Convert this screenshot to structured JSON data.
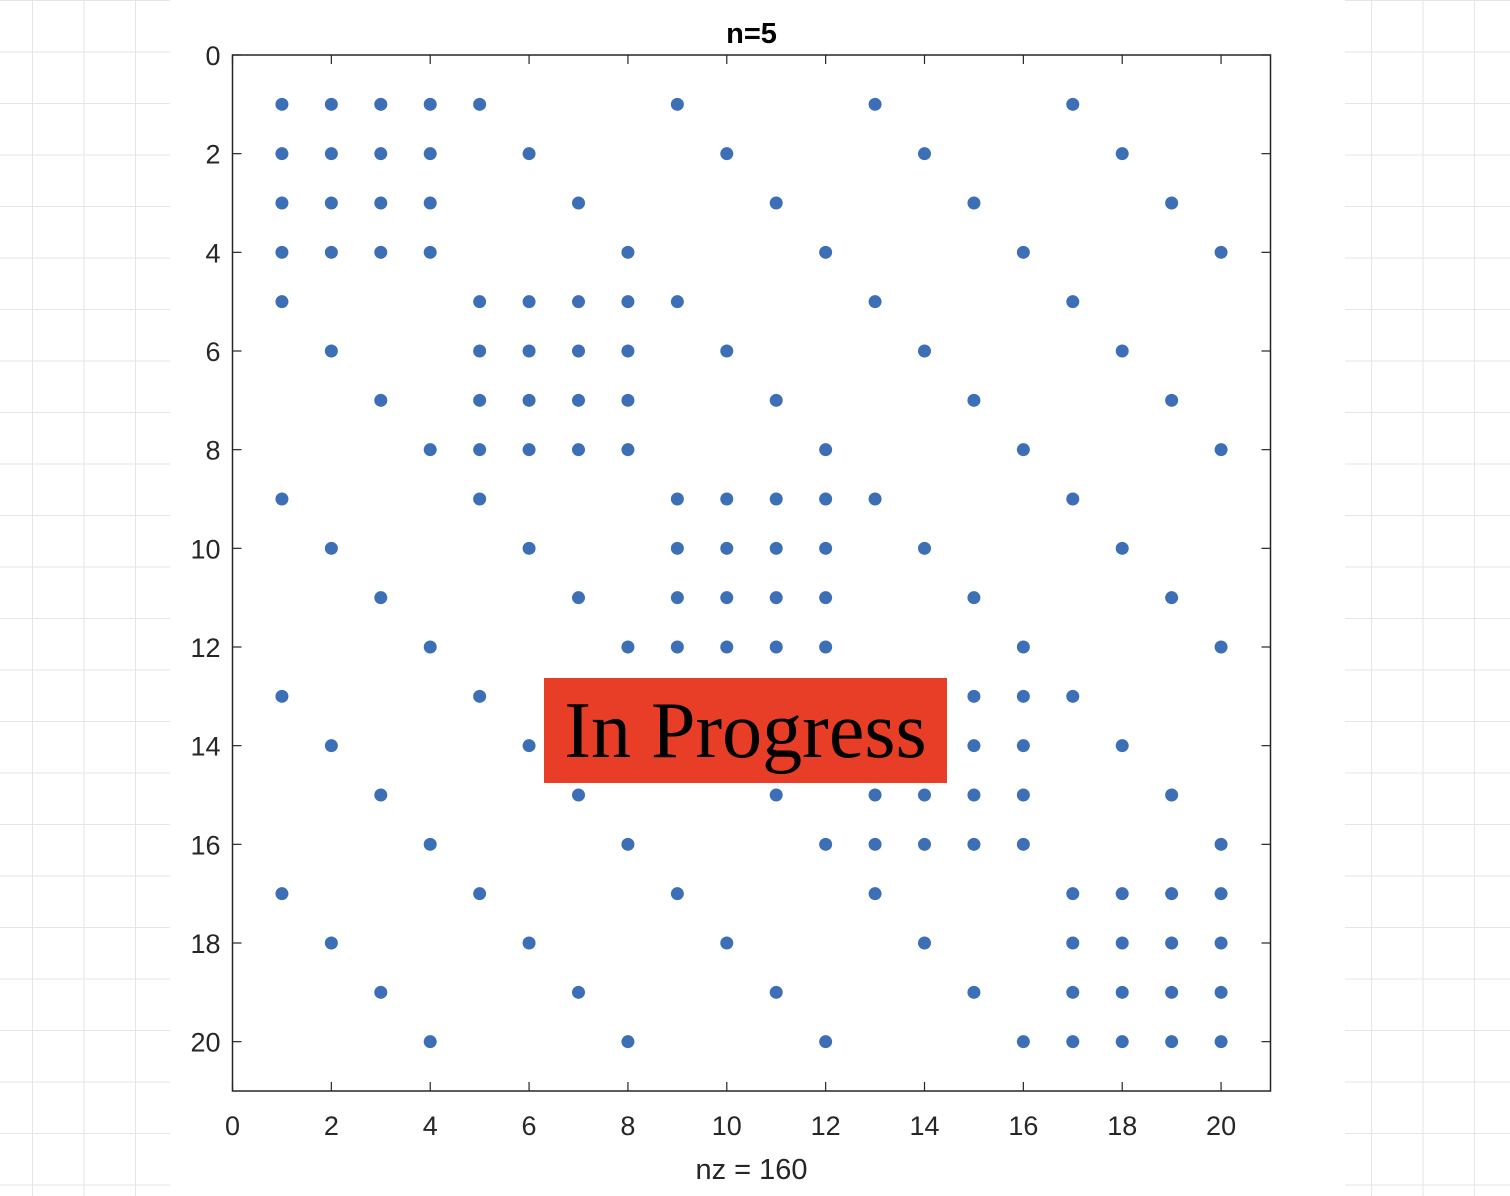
{
  "chart_data": {
    "type": "scatter",
    "title": "n=5",
    "xlabel": "nz = 160",
    "ylabel": "",
    "xlim": [
      0,
      21
    ],
    "ylim": [
      0,
      21
    ],
    "y_reversed": true,
    "xticks": [
      0,
      2,
      4,
      6,
      8,
      10,
      12,
      14,
      16,
      18,
      20
    ],
    "yticks": [
      0,
      2,
      4,
      6,
      8,
      10,
      12,
      14,
      16,
      18,
      20
    ],
    "grid": false,
    "marker_color": "#3d6fb6",
    "rows": [
      [
        1,
        [
          1,
          2,
          3,
          4,
          5,
          9,
          13,
          17
        ]
      ],
      [
        2,
        [
          1,
          2,
          3,
          4,
          6,
          10,
          14,
          18
        ]
      ],
      [
        3,
        [
          1,
          2,
          3,
          4,
          7,
          11,
          15,
          19
        ]
      ],
      [
        4,
        [
          1,
          2,
          3,
          4,
          8,
          12,
          16,
          20
        ]
      ],
      [
        5,
        [
          1,
          5,
          6,
          7,
          8,
          9,
          13,
          17
        ]
      ],
      [
        6,
        [
          2,
          5,
          6,
          7,
          8,
          10,
          14,
          18
        ]
      ],
      [
        7,
        [
          3,
          5,
          6,
          7,
          8,
          11,
          15,
          19
        ]
      ],
      [
        8,
        [
          4,
          5,
          6,
          7,
          8,
          12,
          16,
          20
        ]
      ],
      [
        9,
        [
          1,
          5,
          9,
          10,
          11,
          12,
          13,
          17
        ]
      ],
      [
        10,
        [
          2,
          6,
          9,
          10,
          11,
          12,
          14,
          18
        ]
      ],
      [
        11,
        [
          3,
          7,
          9,
          10,
          11,
          12,
          15,
          19
        ]
      ],
      [
        12,
        [
          4,
          8,
          9,
          10,
          11,
          12,
          16,
          20
        ]
      ],
      [
        13,
        [
          1,
          5,
          9,
          13,
          14,
          15,
          16,
          17
        ]
      ],
      [
        14,
        [
          2,
          6,
          10,
          13,
          14,
          15,
          16,
          18
        ]
      ],
      [
        15,
        [
          3,
          7,
          11,
          13,
          14,
          15,
          16,
          19
        ]
      ],
      [
        16,
        [
          4,
          8,
          12,
          13,
          14,
          15,
          16,
          20
        ]
      ],
      [
        17,
        [
          1,
          5,
          9,
          13,
          17,
          18,
          19,
          20
        ]
      ],
      [
        18,
        [
          2,
          6,
          10,
          14,
          17,
          18,
          19,
          20
        ]
      ],
      [
        19,
        [
          3,
          7,
          11,
          15,
          17,
          18,
          19,
          20
        ]
      ],
      [
        20,
        [
          4,
          8,
          12,
          16,
          17,
          18,
          19,
          20
        ]
      ]
    ]
  },
  "banner": {
    "text": "In Progress",
    "color": "#e83e27"
  }
}
